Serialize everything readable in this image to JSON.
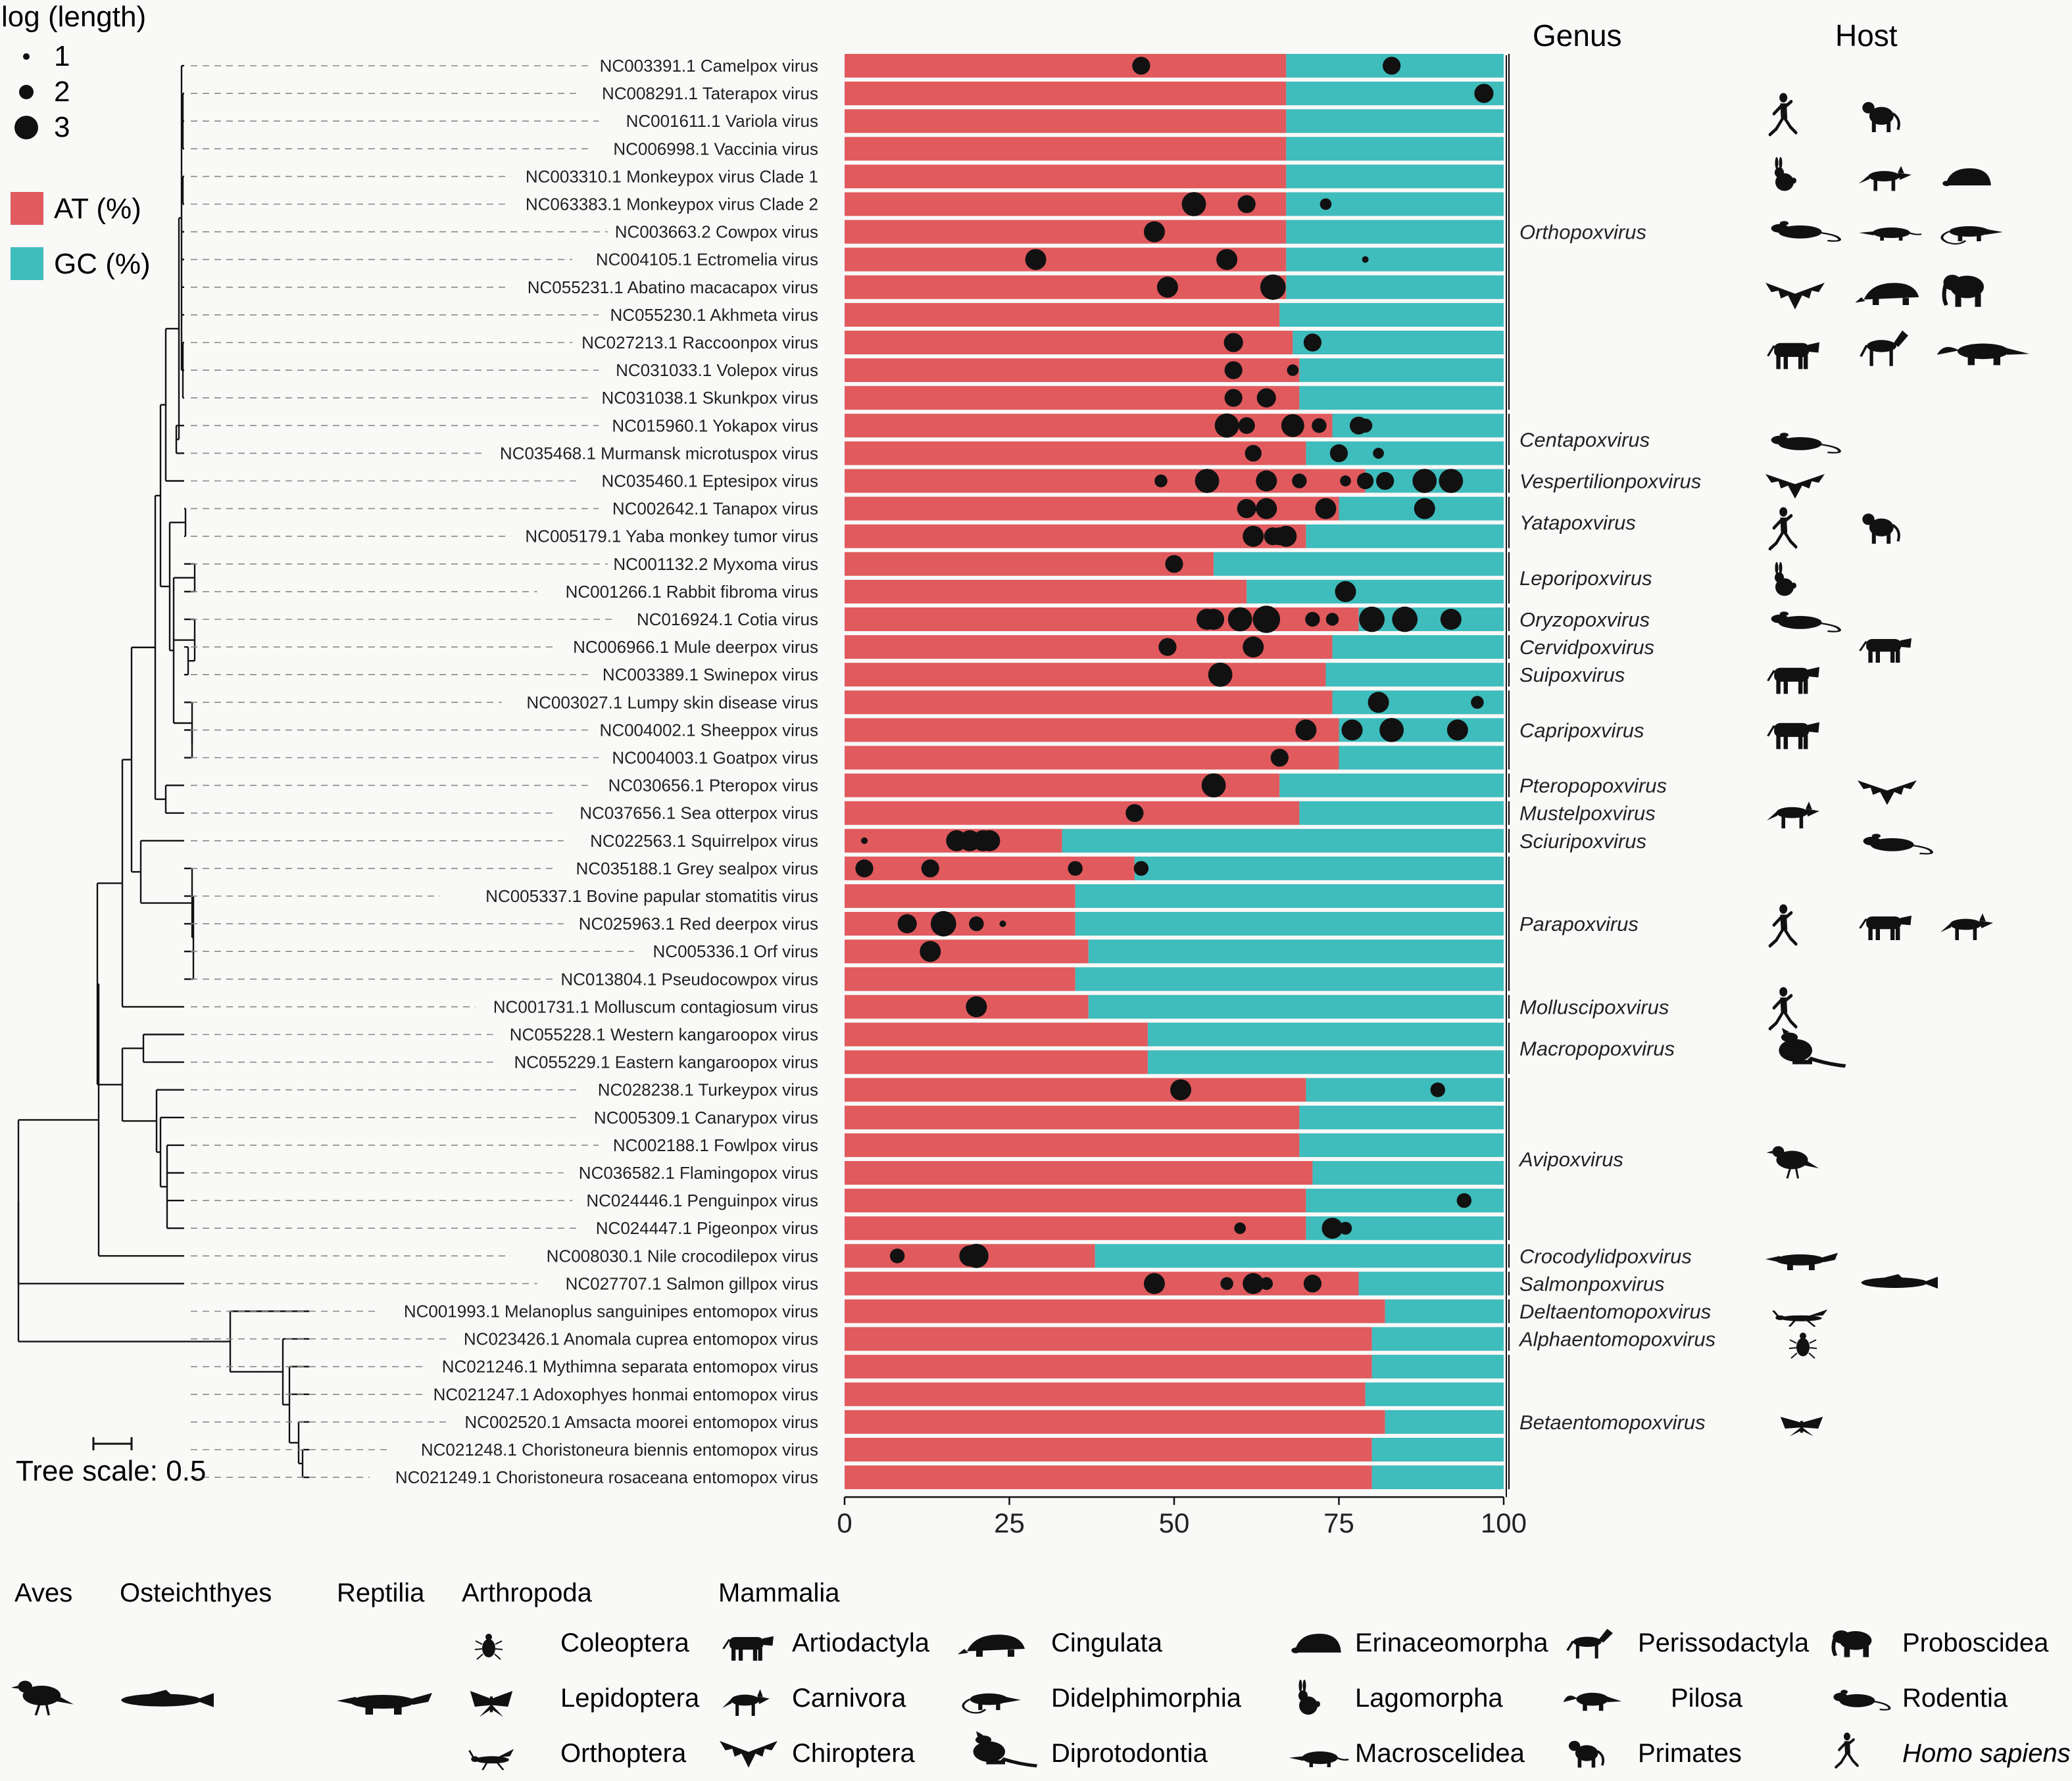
{
  "chart_data": {
    "type": "bar",
    "stacked": true,
    "orientation": "horizontal",
    "xlim": [
      0,
      100
    ],
    "xticks": [
      "0",
      "25",
      "50",
      "75",
      "100"
    ],
    "categories": [
      "NC003391.1 Camelpox virus",
      "NC008291.1 Taterapox virus",
      "NC001611.1 Variola virus",
      "NC006998.1 Vaccinia virus",
      "NC003310.1 Monkeypox virus Clade 1",
      "NC063383.1 Monkeypox virus Clade 2",
      "NC003663.2 Cowpox virus",
      "NC004105.1 Ectromelia virus",
      "NC055231.1 Abatino macacapox virus",
      "NC055230.1 Akhmeta virus",
      "NC027213.1 Raccoonpox virus",
      "NC031033.1 Volepox virus",
      "NC031038.1 Skunkpox virus",
      "NC015960.1 Yokapox virus",
      "NC035468.1 Murmansk microtuspox virus",
      "NC035460.1 Eptesipox virus",
      "NC002642.1 Tanapox virus",
      "NC005179.1 Yaba monkey tumor virus",
      "NC001132.2 Myxoma virus",
      "NC001266.1 Rabbit fibroma virus",
      "NC016924.1 Cotia virus",
      "NC006966.1 Mule deerpox virus",
      "NC003389.1 Swinepox virus",
      "NC003027.1 Lumpy skin disease virus",
      "NC004002.1 Sheeppox virus",
      "NC004003.1 Goatpox virus",
      "NC030656.1 Pteropox virus",
      "NC037656.1 Sea otterpox virus",
      "NC022563.1 Squirrelpox virus",
      "NC035188.1 Grey sealpox virus",
      "NC005337.1 Bovine papular stomatitis virus",
      "NC025963.1 Red deerpox virus",
      "NC005336.1 Orf virus",
      "NC013804.1 Pseudocowpox virus",
      "NC001731.1 Molluscum contagiosum virus",
      "NC055228.1 Western kangaroopox virus",
      "NC055229.1 Eastern kangaroopox virus",
      "NC028238.1 Turkeypox virus",
      "NC005309.1 Canarypox virus",
      "NC002188.1 Fowlpox virus",
      "NC036582.1 Flamingopox virus",
      "NC024446.1 Penguinpox virus",
      "NC024447.1 Pigeonpox virus",
      "NC008030.1 Nile crocodilepox virus",
      "NC027707.1 Salmon gillpox virus",
      "NC001993.1 Melanoplus sanguinipes entomopox virus",
      "NC023426.1 Anomala cuprea entomopox virus",
      "NC021246.1 Mythimna separata entomopox virus",
      "NC021247.1 Adoxophyes honmai entomopox virus",
      "NC002520.1 Amsacta moorei entomopox virus",
      "NC021248.1 Choristoneura biennis entomopox virus",
      "NC021249.1 Choristoneura rosaceana entomopox virus"
    ],
    "series": [
      {
        "name": "AT (%)",
        "color": "#e05a5e",
        "values": [
          67,
          67,
          67,
          67,
          67,
          67,
          67,
          67,
          67,
          66,
          68,
          69,
          69,
          74,
          70,
          79,
          75,
          70,
          56,
          61,
          78,
          74,
          73,
          74,
          75,
          75,
          66,
          69,
          33,
          44,
          35,
          35,
          37,
          35,
          37,
          46,
          46,
          70,
          69,
          69,
          71,
          70,
          70,
          38,
          78,
          82,
          80,
          80,
          79,
          82,
          80,
          80
        ]
      },
      {
        "name": "GC (%)",
        "color": "#3fbcbc",
        "values": [
          33,
          33,
          33,
          33,
          33,
          33,
          33,
          33,
          33,
          34,
          32,
          31,
          31,
          26,
          30,
          21,
          25,
          30,
          44,
          39,
          22,
          26,
          27,
          26,
          25,
          25,
          34,
          31,
          67,
          56,
          65,
          65,
          63,
          65,
          63,
          54,
          54,
          30,
          31,
          31,
          29,
          30,
          30,
          62,
          22,
          18,
          20,
          20,
          21,
          18,
          20,
          20
        ]
      }
    ],
    "dots": [
      [
        [
          45,
          2
        ],
        [
          83,
          2
        ]
      ],
      [
        [
          97,
          2.2
        ]
      ],
      [],
      [],
      [],
      [
        [
          53,
          3
        ],
        [
          61,
          2
        ],
        [
          73,
          1
        ]
      ],
      [
        [
          47,
          2.5
        ]
      ],
      [
        [
          29,
          2.5
        ],
        [
          58,
          2.5
        ],
        [
          79,
          0.6
        ]
      ],
      [
        [
          49,
          2.5
        ],
        [
          65,
          3.2
        ]
      ],
      [],
      [
        [
          59,
          2.2
        ],
        [
          71,
          2
        ]
      ],
      [
        [
          59,
          2
        ],
        [
          68,
          1
        ]
      ],
      [
        [
          59,
          2
        ],
        [
          64,
          2.2
        ]
      ],
      [
        [
          58,
          3
        ],
        [
          61,
          1.8
        ],
        [
          68,
          2.8
        ],
        [
          72,
          1.5
        ],
        [
          78,
          2
        ],
        [
          79,
          1.4
        ]
      ],
      [
        [
          62,
          1.8
        ],
        [
          75,
          2
        ],
        [
          81,
          0.9
        ]
      ],
      [
        [
          48,
          1.2
        ],
        [
          55,
          3
        ],
        [
          64,
          2.5
        ],
        [
          69,
          1.5
        ],
        [
          76,
          0.9
        ],
        [
          79,
          1.8
        ],
        [
          82,
          2
        ],
        [
          88,
          3
        ],
        [
          92,
          3
        ]
      ],
      [
        [
          61,
          2.2
        ],
        [
          64,
          2.5
        ],
        [
          73,
          2.5
        ],
        [
          88,
          2.5
        ]
      ],
      [
        [
          62,
          2.5
        ],
        [
          65,
          2
        ],
        [
          66,
          2
        ],
        [
          67,
          2.5
        ]
      ],
      [
        [
          50,
          2
        ]
      ],
      [
        [
          76,
          2.5
        ]
      ],
      [
        [
          55,
          2.5
        ],
        [
          56,
          2.5
        ],
        [
          60,
          3
        ],
        [
          64,
          3.5
        ],
        [
          71,
          1.5
        ],
        [
          74,
          1.2
        ],
        [
          80,
          3.2
        ],
        [
          85,
          3.2
        ],
        [
          92,
          2.5
        ]
      ],
      [
        [
          49,
          2
        ],
        [
          62,
          2.5
        ]
      ],
      [
        [
          57,
          3
        ]
      ],
      [
        [
          81,
          2.5
        ],
        [
          96,
          1.2
        ]
      ],
      [
        [
          70,
          2.5
        ],
        [
          77,
          2.5
        ],
        [
          83,
          3
        ],
        [
          93,
          2.5
        ]
      ],
      [
        [
          66,
          2
        ]
      ],
      [
        [
          56,
          3
        ]
      ],
      [
        [
          44,
          2
        ]
      ],
      [
        [
          3,
          0.6
        ],
        [
          17,
          2.5
        ],
        [
          19,
          2.5
        ],
        [
          21,
          2.5
        ],
        [
          22,
          2.5
        ]
      ],
      [
        [
          3,
          2
        ],
        [
          13,
          2
        ],
        [
          35,
          1.5
        ],
        [
          45,
          1.5
        ]
      ],
      [],
      [
        [
          9.5,
          2.2
        ],
        [
          15,
          3.2
        ],
        [
          20,
          1.5
        ],
        [
          24,
          0.7
        ]
      ],
      [
        [
          13,
          2.5
        ]
      ],
      [],
      [
        [
          20,
          2.5
        ]
      ],
      [],
      [],
      [
        [
          51,
          2.5
        ],
        [
          90,
          1.5
        ]
      ],
      [],
      [],
      [],
      [
        [
          94,
          1.5
        ]
      ],
      [
        [
          60,
          1
        ],
        [
          74,
          2.5
        ],
        [
          76,
          1.2
        ]
      ],
      [
        [
          8,
          1.5
        ],
        [
          19,
          2.5
        ],
        [
          20,
          3
        ]
      ],
      [
        [
          47,
          2.5
        ],
        [
          58,
          1.2
        ],
        [
          62,
          2.5
        ],
        [
          64,
          1.2
        ],
        [
          71,
          2
        ]
      ],
      [],
      [],
      [],
      [],
      [],
      [],
      []
    ],
    "size_legend": {
      "title": "log (length)",
      "items": [
        "1",
        "2",
        "3"
      ]
    }
  },
  "legend": {
    "at": "AT (%)",
    "gc": "GC (%)",
    "at_color": "#e05a5e",
    "gc_color": "#3fbcbc"
  },
  "headers": {
    "genus": "Genus",
    "host": "Host"
  },
  "tree_scale": "Tree scale: 0.5",
  "genera": [
    {
      "name": "Orthopoxvirus",
      "rows": [
        0,
        12
      ]
    },
    {
      "name": "Centapoxvirus",
      "rows": [
        13,
        14
      ]
    },
    {
      "name": "Vespertilionpoxvirus",
      "rows": [
        15,
        15
      ]
    },
    {
      "name": "Yatapoxvirus",
      "rows": [
        16,
        17
      ]
    },
    {
      "name": "Leporipoxvirus",
      "rows": [
        18,
        19
      ]
    },
    {
      "name": "Oryzopoxvirus",
      "rows": [
        20,
        20
      ]
    },
    {
      "name": "Cervidpoxvirus",
      "rows": [
        21,
        21
      ]
    },
    {
      "name": "Suipoxvirus",
      "rows": [
        22,
        22
      ]
    },
    {
      "name": "Capripoxvirus",
      "rows": [
        23,
        25
      ]
    },
    {
      "name": "Pteropopoxvirus",
      "rows": [
        26,
        26
      ]
    },
    {
      "name": "Mustelpoxvirus",
      "rows": [
        27,
        27
      ]
    },
    {
      "name": "Sciuripoxvirus",
      "rows": [
        28,
        28
      ]
    },
    {
      "name": "Parapoxvirus",
      "rows": [
        29,
        33
      ]
    },
    {
      "name": "Molluscipoxvirus",
      "rows": [
        34,
        34
      ]
    },
    {
      "name": "Macropopoxvirus",
      "rows": [
        35,
        36
      ]
    },
    {
      "name": "Avipoxvirus",
      "rows": [
        37,
        42
      ]
    },
    {
      "name": "Crocodylidpoxvirus",
      "rows": [
        43,
        43
      ]
    },
    {
      "name": "Salmonpoxvirus",
      "rows": [
        44,
        44
      ]
    },
    {
      "name": "Deltaentomopoxvirus",
      "rows": [
        45,
        45
      ]
    },
    {
      "name": "Alphaentomopoxvirus",
      "rows": [
        46,
        46
      ]
    },
    {
      "name": "Betaentomopoxvirus",
      "rows": [
        47,
        51
      ]
    }
  ],
  "bottom_legend": {
    "groups": [
      "Aves",
      "Osteichthyes",
      "Reptilia",
      "Arthropoda",
      "Mammalia"
    ],
    "arthropoda": [
      "Coleoptera",
      "Lepidoptera",
      "Orthoptera"
    ],
    "mammalia": [
      "Artiodactyla",
      "Carnivora",
      "Chiroptera",
      "Cingulata",
      "Didelphimorphia",
      "Diprotodontia",
      "Erinaceomorpha",
      "Lagomorpha",
      "Macroscelidea",
      "Perissodactyla",
      "Pilosa",
      "Primates",
      "Proboscidea",
      "Rodentia",
      "Homo sapiens"
    ],
    "icons": [
      "bird-icon",
      "fish-icon",
      "crocodile-icon",
      "beetle-icon",
      "moth-icon",
      "grasshopper-icon",
      "bovine-icon",
      "canid-icon",
      "bat-icon",
      "armadillo-icon",
      "opossum-icon",
      "kangaroo-icon",
      "hedgehog-icon",
      "rabbit-icon",
      "shrew-icon",
      "horse-icon",
      "anteater-icon",
      "monkey-icon",
      "elephant-icon",
      "rodent-icon",
      "human-icon"
    ]
  }
}
